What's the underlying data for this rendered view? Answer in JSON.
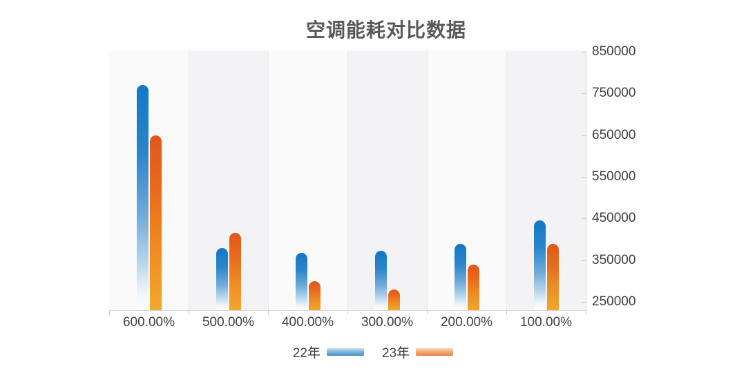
{
  "chart_data": {
    "type": "bar",
    "title": "空调能耗对比数据",
    "categories": [
      "600.00%",
      "500.00%",
      "400.00%",
      "300.00%",
      "200.00%",
      "100.00%"
    ],
    "series": [
      {
        "name": "22年",
        "values": [
          770000,
          380000,
          368000,
          373000,
          390000,
          445000
        ],
        "bar_stops": [
          [
            "#1377c5",
            "0%"
          ],
          [
            "#2a85cb",
            "30%"
          ],
          [
            "#6fabd9",
            "58%"
          ],
          [
            "#bcd9ed",
            "80%"
          ],
          [
            "#eef5fb",
            "92%"
          ],
          [
            "#ffffff",
            "100%"
          ]
        ],
        "legend_swatch": [
          "#c9e0f1",
          "#7ab1da",
          "#4a92c7"
        ]
      },
      {
        "name": "23年",
        "values": [
          650000,
          415000,
          300000,
          280000,
          340000,
          390000
        ],
        "bar_stops": [
          [
            "#e2571a",
            "0%"
          ],
          [
            "#e8691c",
            "30%"
          ],
          [
            "#ee8c23",
            "65%"
          ],
          [
            "#f3a72d",
            "100%"
          ]
        ],
        "legend_swatch": [
          "#f9d9bd",
          "#f1a771",
          "#e98446"
        ]
      }
    ],
    "y_axis": {
      "side": "right",
      "min": 250000,
      "max": 850000,
      "step": 100000,
      "tick_labels": [
        "850000",
        "750000",
        "650000",
        "550000",
        "450000",
        "350000",
        "250000"
      ]
    },
    "legend_position": "bottom",
    "grid": "alternating-vertical-bands"
  },
  "colors": {
    "series_22_top": "#1377c5",
    "series_23_top": "#e2571a",
    "series_23_bottom": "#f3a72d",
    "title_text": "#58595b",
    "axis_text": "#3f3f3f",
    "axis_line": "#d6d6d8",
    "band_light": "#fafafb",
    "band_dark": "#f3f3f5"
  }
}
